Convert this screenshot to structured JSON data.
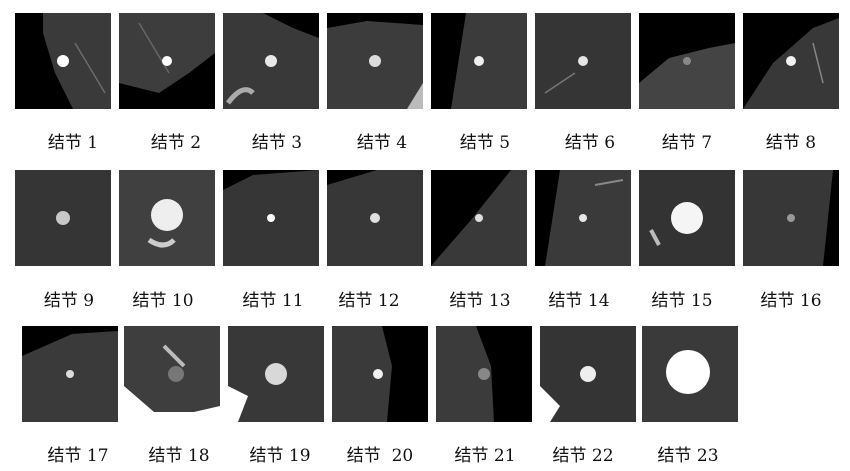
{
  "nodules": [
    {
      "id": 1,
      "label": "结节 1"
    },
    {
      "id": 2,
      "label": "结节 2"
    },
    {
      "id": 3,
      "label": "结节 3"
    },
    {
      "id": 4,
      "label": "结节 4"
    },
    {
      "id": 5,
      "label": "结节 5"
    },
    {
      "id": 6,
      "label": "结节 6"
    },
    {
      "id": 7,
      "label": "结节 7"
    },
    {
      "id": 8,
      "label": "结节 8"
    },
    {
      "id": 9,
      "label": "结节 9"
    },
    {
      "id": 10,
      "label": "结节 10"
    },
    {
      "id": 11,
      "label": "结节 11"
    },
    {
      "id": 12,
      "label": "结节 12"
    },
    {
      "id": 13,
      "label": "结节 13"
    },
    {
      "id": 14,
      "label": "结节 14"
    },
    {
      "id": 15,
      "label": "结节 15"
    },
    {
      "id": 16,
      "label": "结节 16"
    },
    {
      "id": 17,
      "label": "结节 17"
    },
    {
      "id": 18,
      "label": "结节 18"
    },
    {
      "id": 19,
      "label": "结节 19"
    },
    {
      "id": 20,
      "label": "结节  20"
    },
    {
      "id": 21,
      "label": "结节 21"
    },
    {
      "id": 22,
      "label": "结节 22"
    },
    {
      "id": 23,
      "label": "结节 23"
    }
  ]
}
